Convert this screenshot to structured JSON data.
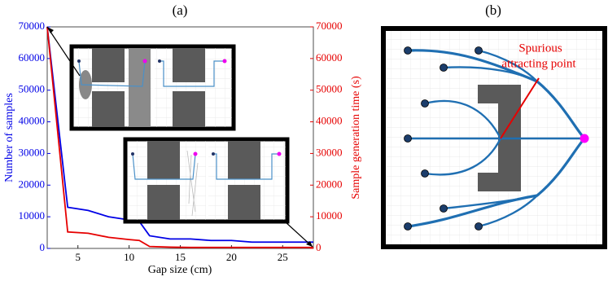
{
  "chart_data": {
    "type": "line",
    "title": "(a)",
    "x_label": "Gap size (cm)",
    "y_label": "Number of samples",
    "y2_label": "Sample generation time (s)",
    "x": [
      2,
      4,
      6,
      8,
      10,
      11,
      12,
      14,
      16,
      18,
      20,
      22,
      24,
      26,
      28
    ],
    "series": [
      {
        "color": "#0000e6",
        "values": [
          70000,
          13000,
          12000,
          10000,
          9000,
          8500,
          4000,
          3000,
          3000,
          2500,
          2500,
          2000,
          2000,
          2000,
          2000
        ]
      },
      {
        "color": "#e60000",
        "axis": "y2",
        "values": [
          70000,
          5200,
          4800,
          3500,
          2800,
          2500,
          600,
          400,
          300,
          300,
          300,
          300,
          300,
          300,
          300
        ]
      }
    ],
    "xlim": [
      2,
      28
    ],
    "xticks": [
      5,
      10,
      15,
      20,
      25
    ],
    "ylim": [
      0,
      70000
    ],
    "yticks": [
      0,
      10000,
      20000,
      30000,
      40000,
      50000,
      60000,
      70000
    ],
    "y2lim": [
      0,
      70000
    ],
    "y2ticks": [
      0,
      10000,
      20000,
      30000,
      40000,
      50000,
      60000,
      70000
    ]
  },
  "diagram": {
    "panel_label": "(b)",
    "annotation_lines": [
      "Spurious",
      "attracting point"
    ]
  }
}
